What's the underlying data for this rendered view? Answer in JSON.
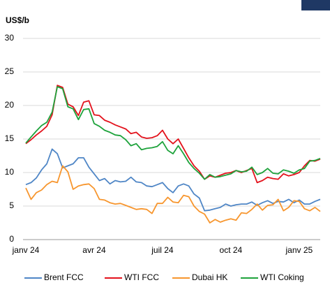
{
  "chart_data": {
    "type": "line",
    "y_axis_label": "US$/b",
    "categories": [
      "janv 24",
      null,
      null,
      null,
      null,
      null,
      null,
      null,
      null,
      null,
      null,
      null,
      null,
      "avr 24",
      null,
      null,
      null,
      null,
      null,
      null,
      null,
      null,
      null,
      null,
      null,
      null,
      "juil 24",
      null,
      null,
      null,
      null,
      null,
      null,
      null,
      null,
      null,
      null,
      null,
      null,
      "oct 24",
      null,
      null,
      null,
      null,
      null,
      null,
      null,
      null,
      null,
      null,
      null,
      null,
      "janv 25",
      null,
      null,
      null,
      null
    ],
    "series": [
      {
        "name": "Brent FCC",
        "color": "#4f86c6",
        "values": [
          8.2,
          8.5,
          9.2,
          10.4,
          11.3,
          13.5,
          12.8,
          10.7,
          11.0,
          11.3,
          12.2,
          12.2,
          10.8,
          9.8,
          8.8,
          9.1,
          8.3,
          8.8,
          8.6,
          8.7,
          9.3,
          8.6,
          8.5,
          8.0,
          7.9,
          8.2,
          8.5,
          7.6,
          7.0,
          8.0,
          8.3,
          8.0,
          6.8,
          6.2,
          4.3,
          4.4,
          4.6,
          4.8,
          5.3,
          5.0,
          5.2,
          5.3,
          5.3,
          5.6,
          5.1,
          5.5,
          5.8,
          5.4,
          5.7,
          5.6,
          6.0,
          5.5,
          5.9,
          5.3,
          5.3,
          5.7,
          6.0
        ]
      },
      {
        "name": "WTI FCC",
        "color": "#e3121c",
        "values": [
          14.3,
          14.9,
          15.6,
          16.2,
          16.9,
          18.6,
          23.0,
          22.7,
          20.2,
          19.8,
          18.5,
          20.5,
          20.7,
          18.6,
          18.5,
          17.8,
          17.5,
          17.1,
          16.8,
          16.5,
          15.8,
          16.0,
          15.3,
          15.1,
          15.2,
          15.5,
          16.3,
          15.0,
          14.3,
          15.0,
          13.6,
          12.2,
          11.0,
          10.2,
          9.0,
          9.5,
          9.3,
          9.6,
          9.9,
          10.0,
          10.3,
          10.0,
          10.3,
          10.6,
          8.5,
          8.8,
          9.3,
          9.1,
          9.0,
          9.8,
          9.5,
          9.7,
          10.0,
          11.0,
          11.8,
          11.7,
          12.0
        ]
      },
      {
        "name": "Dubai HK",
        "color": "#f7962e",
        "values": [
          7.7,
          6.0,
          7.0,
          7.4,
          8.2,
          8.7,
          8.5,
          11.0,
          10.1,
          7.5,
          8.0,
          8.2,
          8.3,
          7.6,
          6.0,
          5.9,
          5.5,
          5.3,
          5.4,
          5.1,
          4.8,
          4.5,
          4.6,
          4.5,
          3.9,
          5.4,
          5.4,
          6.3,
          5.6,
          5.5,
          6.6,
          6.4,
          5.0,
          4.2,
          3.8,
          2.5,
          3.0,
          2.6,
          2.9,
          3.1,
          2.9,
          4.0,
          3.9,
          4.5,
          5.3,
          4.4,
          5.1,
          5.2,
          6.0,
          4.3,
          4.8,
          5.8,
          5.7,
          4.6,
          4.3,
          4.8,
          4.2
        ]
      },
      {
        "name": "WTI Coking",
        "color": "#1ea33c",
        "values": [
          14.4,
          15.3,
          16.2,
          17.0,
          17.5,
          19.0,
          22.8,
          22.5,
          19.8,
          19.5,
          17.9,
          19.4,
          19.5,
          17.3,
          16.9,
          16.3,
          16.0,
          15.6,
          15.5,
          14.9,
          14.0,
          14.3,
          13.4,
          13.6,
          13.7,
          13.9,
          14.6,
          13.3,
          12.8,
          14.0,
          12.8,
          11.5,
          10.6,
          9.9,
          9.0,
          9.7,
          9.3,
          9.4,
          9.6,
          9.8,
          10.3,
          10.1,
          10.2,
          10.8,
          9.7,
          10.0,
          10.6,
          9.9,
          9.8,
          10.4,
          10.2,
          9.9,
          10.4,
          10.6,
          11.7,
          11.8,
          12.1
        ]
      }
    ],
    "ylim": [
      0,
      30
    ],
    "yticks": [
      0,
      5,
      10,
      15,
      20,
      25,
      30
    ],
    "grid": true
  }
}
